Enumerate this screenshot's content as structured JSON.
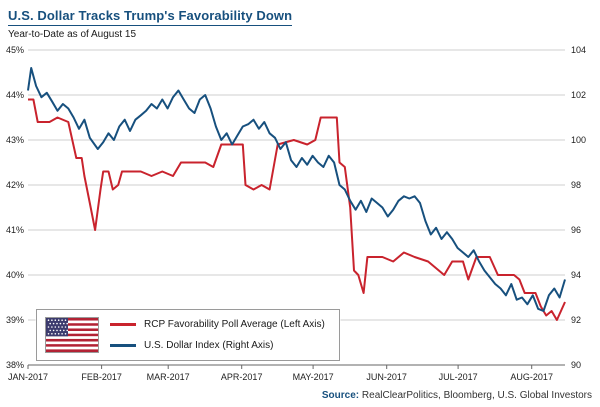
{
  "header": {
    "title": "U.S. Dollar Tracks Trump's Favorability Down",
    "subtitle": "Year-to-Date as of August 15"
  },
  "source": {
    "label": "Source:",
    "text": "RealClearPolitics, Bloomberg, U.S. Global Investors"
  },
  "legend": {
    "items": [
      {
        "label": "RCP Favorability Poll Average (Left Axis)",
        "color": "#c9232d"
      },
      {
        "label": "U.S. Dollar Index (Right Axis)",
        "color": "#17507e"
      }
    ],
    "flag_icon": "us-flag-icon"
  },
  "colors": {
    "title": "#17507e",
    "grid": "#cfcfcf",
    "axis": "#666666",
    "red_series": "#c9232d",
    "blue_series": "#17507e"
  },
  "chart_data": {
    "type": "line",
    "title": "U.S. Dollar Tracks Trump's Favorability Down",
    "subtitle": "Year-to-Date as of August 15",
    "grid": true,
    "legend_position": "bottom-left",
    "x_axis": {
      "labels": [
        "JAN-2017",
        "FEB-2017",
        "MAR-2017",
        "APR-2017",
        "MAY-2017",
        "JUN-2017",
        "JUL-2017",
        "AUG-2017"
      ],
      "positions": [
        0,
        0.137,
        0.261,
        0.398,
        0.531,
        0.668,
        0.801,
        0.938
      ]
    },
    "left_axis": {
      "min": 38,
      "max": 45,
      "step": 1,
      "tick_labels": [
        "38%",
        "39%",
        "40%",
        "41%",
        "42%",
        "43%",
        "44%",
        "45%"
      ],
      "label": "RCP Favorability Poll Average"
    },
    "right_axis": {
      "min": 90,
      "max": 104,
      "step": 2,
      "tick_labels": [
        "90",
        "92",
        "94",
        "96",
        "98",
        "100",
        "102",
        "104"
      ],
      "label": "U.S. Dollar Index"
    },
    "series": [
      {
        "name": "RCP Favorability Poll Average",
        "axis": "left",
        "color": "#c9232d",
        "points": [
          [
            0.0,
            43.9
          ],
          [
            0.01,
            43.9
          ],
          [
            0.018,
            43.4
          ],
          [
            0.04,
            43.4
          ],
          [
            0.055,
            43.5
          ],
          [
            0.075,
            43.4
          ],
          [
            0.09,
            42.6
          ],
          [
            0.1,
            42.6
          ],
          [
            0.105,
            42.2
          ],
          [
            0.115,
            41.6
          ],
          [
            0.125,
            41.0
          ],
          [
            0.135,
            41.9
          ],
          [
            0.14,
            42.3
          ],
          [
            0.15,
            42.3
          ],
          [
            0.158,
            41.9
          ],
          [
            0.168,
            42.0
          ],
          [
            0.175,
            42.3
          ],
          [
            0.21,
            42.3
          ],
          [
            0.23,
            42.2
          ],
          [
            0.25,
            42.3
          ],
          [
            0.27,
            42.2
          ],
          [
            0.285,
            42.5
          ],
          [
            0.33,
            42.5
          ],
          [
            0.345,
            42.4
          ],
          [
            0.36,
            42.9
          ],
          [
            0.4,
            42.9
          ],
          [
            0.405,
            42.0
          ],
          [
            0.42,
            41.9
          ],
          [
            0.435,
            42.0
          ],
          [
            0.45,
            41.9
          ],
          [
            0.465,
            42.9
          ],
          [
            0.495,
            43.0
          ],
          [
            0.52,
            42.9
          ],
          [
            0.535,
            43.0
          ],
          [
            0.545,
            43.5
          ],
          [
            0.575,
            43.5
          ],
          [
            0.58,
            42.5
          ],
          [
            0.59,
            42.4
          ],
          [
            0.6,
            41.5
          ],
          [
            0.607,
            40.1
          ],
          [
            0.615,
            40.0
          ],
          [
            0.625,
            39.6
          ],
          [
            0.632,
            40.4
          ],
          [
            0.66,
            40.4
          ],
          [
            0.68,
            40.3
          ],
          [
            0.7,
            40.5
          ],
          [
            0.72,
            40.4
          ],
          [
            0.745,
            40.3
          ],
          [
            0.775,
            40.0
          ],
          [
            0.79,
            40.3
          ],
          [
            0.81,
            40.3
          ],
          [
            0.82,
            39.9
          ],
          [
            0.835,
            40.4
          ],
          [
            0.86,
            40.4
          ],
          [
            0.875,
            40.0
          ],
          [
            0.905,
            40.0
          ],
          [
            0.915,
            39.9
          ],
          [
            0.925,
            39.6
          ],
          [
            0.945,
            39.6
          ],
          [
            0.955,
            39.3
          ],
          [
            0.965,
            39.1
          ],
          [
            0.975,
            39.2
          ],
          [
            0.985,
            39.0
          ],
          [
            1.0,
            39.4
          ]
        ]
      },
      {
        "name": "U.S. Dollar Index",
        "axis": "right",
        "color": "#17507e",
        "points": [
          [
            0.0,
            102.2
          ],
          [
            0.006,
            103.2
          ],
          [
            0.015,
            102.4
          ],
          [
            0.025,
            101.9
          ],
          [
            0.035,
            102.1
          ],
          [
            0.045,
            101.7
          ],
          [
            0.055,
            101.3
          ],
          [
            0.065,
            101.6
          ],
          [
            0.075,
            101.4
          ],
          [
            0.085,
            101.0
          ],
          [
            0.095,
            100.5
          ],
          [
            0.105,
            100.9
          ],
          [
            0.115,
            100.1
          ],
          [
            0.13,
            99.6
          ],
          [
            0.14,
            99.9
          ],
          [
            0.15,
            100.3
          ],
          [
            0.16,
            100.0
          ],
          [
            0.17,
            100.6
          ],
          [
            0.18,
            100.9
          ],
          [
            0.19,
            100.4
          ],
          [
            0.2,
            100.9
          ],
          [
            0.21,
            101.1
          ],
          [
            0.22,
            101.3
          ],
          [
            0.23,
            101.6
          ],
          [
            0.24,
            101.4
          ],
          [
            0.25,
            101.8
          ],
          [
            0.26,
            101.4
          ],
          [
            0.27,
            101.9
          ],
          [
            0.28,
            102.2
          ],
          [
            0.29,
            101.8
          ],
          [
            0.3,
            101.4
          ],
          [
            0.31,
            101.2
          ],
          [
            0.32,
            101.8
          ],
          [
            0.33,
            102.0
          ],
          [
            0.34,
            101.4
          ],
          [
            0.35,
            100.6
          ],
          [
            0.36,
            100.0
          ],
          [
            0.37,
            100.3
          ],
          [
            0.38,
            99.8
          ],
          [
            0.39,
            100.2
          ],
          [
            0.4,
            100.6
          ],
          [
            0.41,
            100.7
          ],
          [
            0.42,
            100.9
          ],
          [
            0.43,
            100.5
          ],
          [
            0.44,
            100.8
          ],
          [
            0.45,
            100.3
          ],
          [
            0.46,
            100.1
          ],
          [
            0.47,
            99.6
          ],
          [
            0.48,
            99.9
          ],
          [
            0.49,
            99.1
          ],
          [
            0.5,
            98.8
          ],
          [
            0.51,
            99.2
          ],
          [
            0.52,
            98.9
          ],
          [
            0.53,
            99.3
          ],
          [
            0.54,
            99.0
          ],
          [
            0.55,
            98.8
          ],
          [
            0.56,
            99.3
          ],
          [
            0.57,
            99.0
          ],
          [
            0.58,
            98.0
          ],
          [
            0.59,
            97.8
          ],
          [
            0.6,
            97.3
          ],
          [
            0.61,
            96.9
          ],
          [
            0.62,
            97.3
          ],
          [
            0.63,
            96.8
          ],
          [
            0.64,
            97.4
          ],
          [
            0.65,
            97.2
          ],
          [
            0.66,
            97.0
          ],
          [
            0.67,
            96.6
          ],
          [
            0.68,
            96.9
          ],
          [
            0.69,
            97.3
          ],
          [
            0.7,
            97.5
          ],
          [
            0.71,
            97.4
          ],
          [
            0.72,
            97.5
          ],
          [
            0.73,
            97.2
          ],
          [
            0.74,
            96.4
          ],
          [
            0.75,
            95.8
          ],
          [
            0.76,
            96.1
          ],
          [
            0.77,
            95.6
          ],
          [
            0.78,
            95.9
          ],
          [
            0.79,
            95.6
          ],
          [
            0.8,
            95.2
          ],
          [
            0.81,
            95.0
          ],
          [
            0.82,
            94.8
          ],
          [
            0.83,
            95.1
          ],
          [
            0.84,
            94.6
          ],
          [
            0.85,
            94.2
          ],
          [
            0.86,
            93.9
          ],
          [
            0.87,
            93.6
          ],
          [
            0.88,
            93.4
          ],
          [
            0.89,
            93.1
          ],
          [
            0.9,
            93.6
          ],
          [
            0.91,
            92.9
          ],
          [
            0.92,
            93.0
          ],
          [
            0.93,
            92.7
          ],
          [
            0.94,
            93.1
          ],
          [
            0.95,
            92.5
          ],
          [
            0.96,
            92.4
          ],
          [
            0.97,
            93.1
          ],
          [
            0.98,
            93.4
          ],
          [
            0.99,
            93.0
          ],
          [
            1.0,
            93.8
          ]
        ]
      }
    ]
  }
}
